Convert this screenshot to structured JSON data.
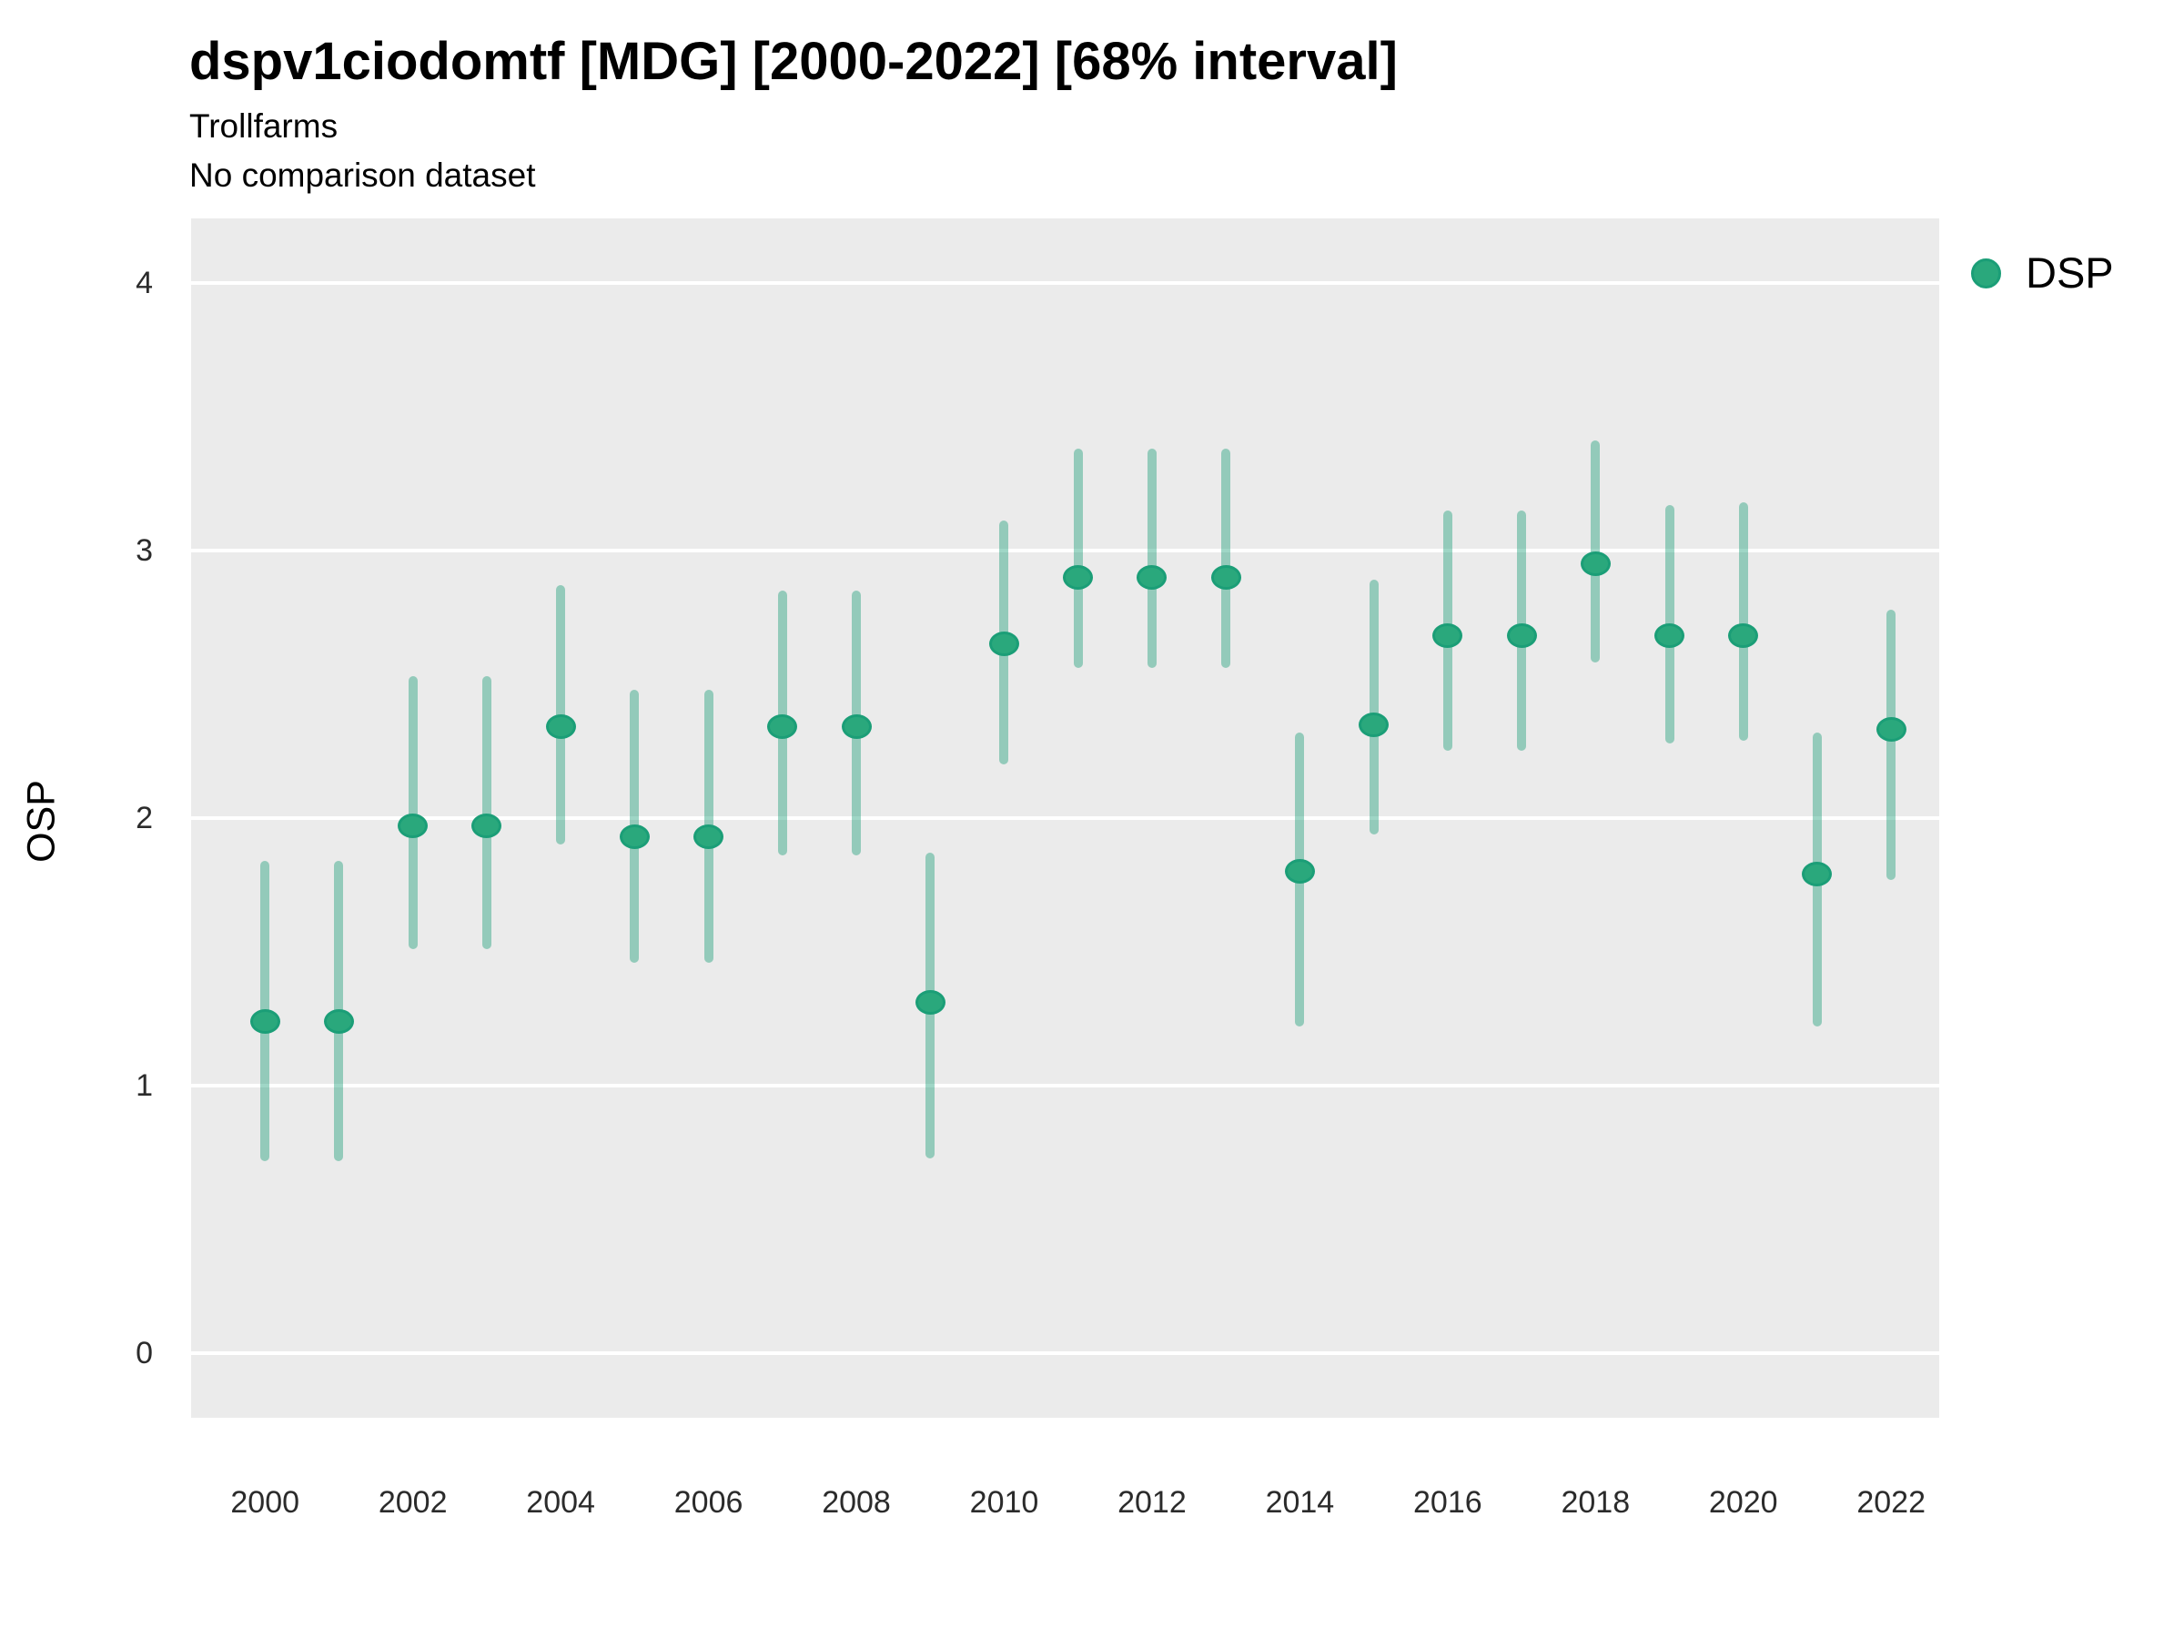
{
  "header": {
    "title": "dspv1ciodomtf [MDG] [2000-2022] [68% interval]",
    "subtitle_line1": "Trollfarms",
    "subtitle_line2": "No comparison dataset"
  },
  "legend": {
    "label": "DSP",
    "position": "right-top"
  },
  "colors": {
    "panel_background": "#ebebeb",
    "gridline": "#ffffff",
    "point_fill": "#2aa87c",
    "point_stroke": "#1b9e77",
    "interval_bar": "rgba(27,158,119,0.42)",
    "text": "#000000",
    "tick_text": "#2b2b2b"
  },
  "chart_data": {
    "type": "scatter",
    "subtype": "point-interval",
    "title": "dspv1ciodomtf [MDG] [2000-2022] [68% interval]",
    "subtitle": "Trollfarms / No comparison dataset",
    "interval_level": "68%",
    "xlabel": "",
    "ylabel": "OSP",
    "legend_position": "right",
    "grid": "major-horizontal-only",
    "x_ticks": [
      2000,
      2002,
      2004,
      2006,
      2008,
      2010,
      2012,
      2014,
      2016,
      2018,
      2020,
      2022
    ],
    "y_ticks": [
      0,
      1,
      2,
      3,
      4
    ],
    "xlim": [
      1999.0,
      2022.65
    ],
    "ylim": [
      -0.24,
      4.24
    ],
    "series": [
      {
        "name": "DSP",
        "points": [
          {
            "year": 2000,
            "mid": 1.24,
            "lo": 0.72,
            "hi": 1.84
          },
          {
            "year": 2001,
            "mid": 1.24,
            "lo": 0.72,
            "hi": 1.84
          },
          {
            "year": 2002,
            "mid": 1.97,
            "lo": 1.51,
            "hi": 2.53
          },
          {
            "year": 2003,
            "mid": 1.97,
            "lo": 1.51,
            "hi": 2.53
          },
          {
            "year": 2004,
            "mid": 2.34,
            "lo": 1.9,
            "hi": 2.87
          },
          {
            "year": 2005,
            "mid": 1.93,
            "lo": 1.46,
            "hi": 2.48
          },
          {
            "year": 2006,
            "mid": 1.93,
            "lo": 1.46,
            "hi": 2.48
          },
          {
            "year": 2007,
            "mid": 2.34,
            "lo": 1.86,
            "hi": 2.85
          },
          {
            "year": 2008,
            "mid": 2.34,
            "lo": 1.86,
            "hi": 2.85
          },
          {
            "year": 2009,
            "mid": 1.31,
            "lo": 0.73,
            "hi": 1.87
          },
          {
            "year": 2010,
            "mid": 2.65,
            "lo": 2.2,
            "hi": 3.11
          },
          {
            "year": 2011,
            "mid": 2.9,
            "lo": 2.56,
            "hi": 3.38
          },
          {
            "year": 2012,
            "mid": 2.9,
            "lo": 2.56,
            "hi": 3.38
          },
          {
            "year": 2013,
            "mid": 2.9,
            "lo": 2.56,
            "hi": 3.38
          },
          {
            "year": 2014,
            "mid": 1.8,
            "lo": 1.22,
            "hi": 2.32
          },
          {
            "year": 2015,
            "mid": 2.35,
            "lo": 1.94,
            "hi": 2.89
          },
          {
            "year": 2016,
            "mid": 2.68,
            "lo": 2.25,
            "hi": 3.15
          },
          {
            "year": 2017,
            "mid": 2.68,
            "lo": 2.25,
            "hi": 3.15
          },
          {
            "year": 2018,
            "mid": 2.95,
            "lo": 2.58,
            "hi": 3.41
          },
          {
            "year": 2019,
            "mid": 2.68,
            "lo": 2.28,
            "hi": 3.17
          },
          {
            "year": 2020,
            "mid": 2.68,
            "lo": 2.29,
            "hi": 3.18
          },
          {
            "year": 2021,
            "mid": 1.79,
            "lo": 1.22,
            "hi": 2.32
          },
          {
            "year": 2022,
            "mid": 2.33,
            "lo": 1.77,
            "hi": 2.78
          }
        ]
      }
    ]
  }
}
